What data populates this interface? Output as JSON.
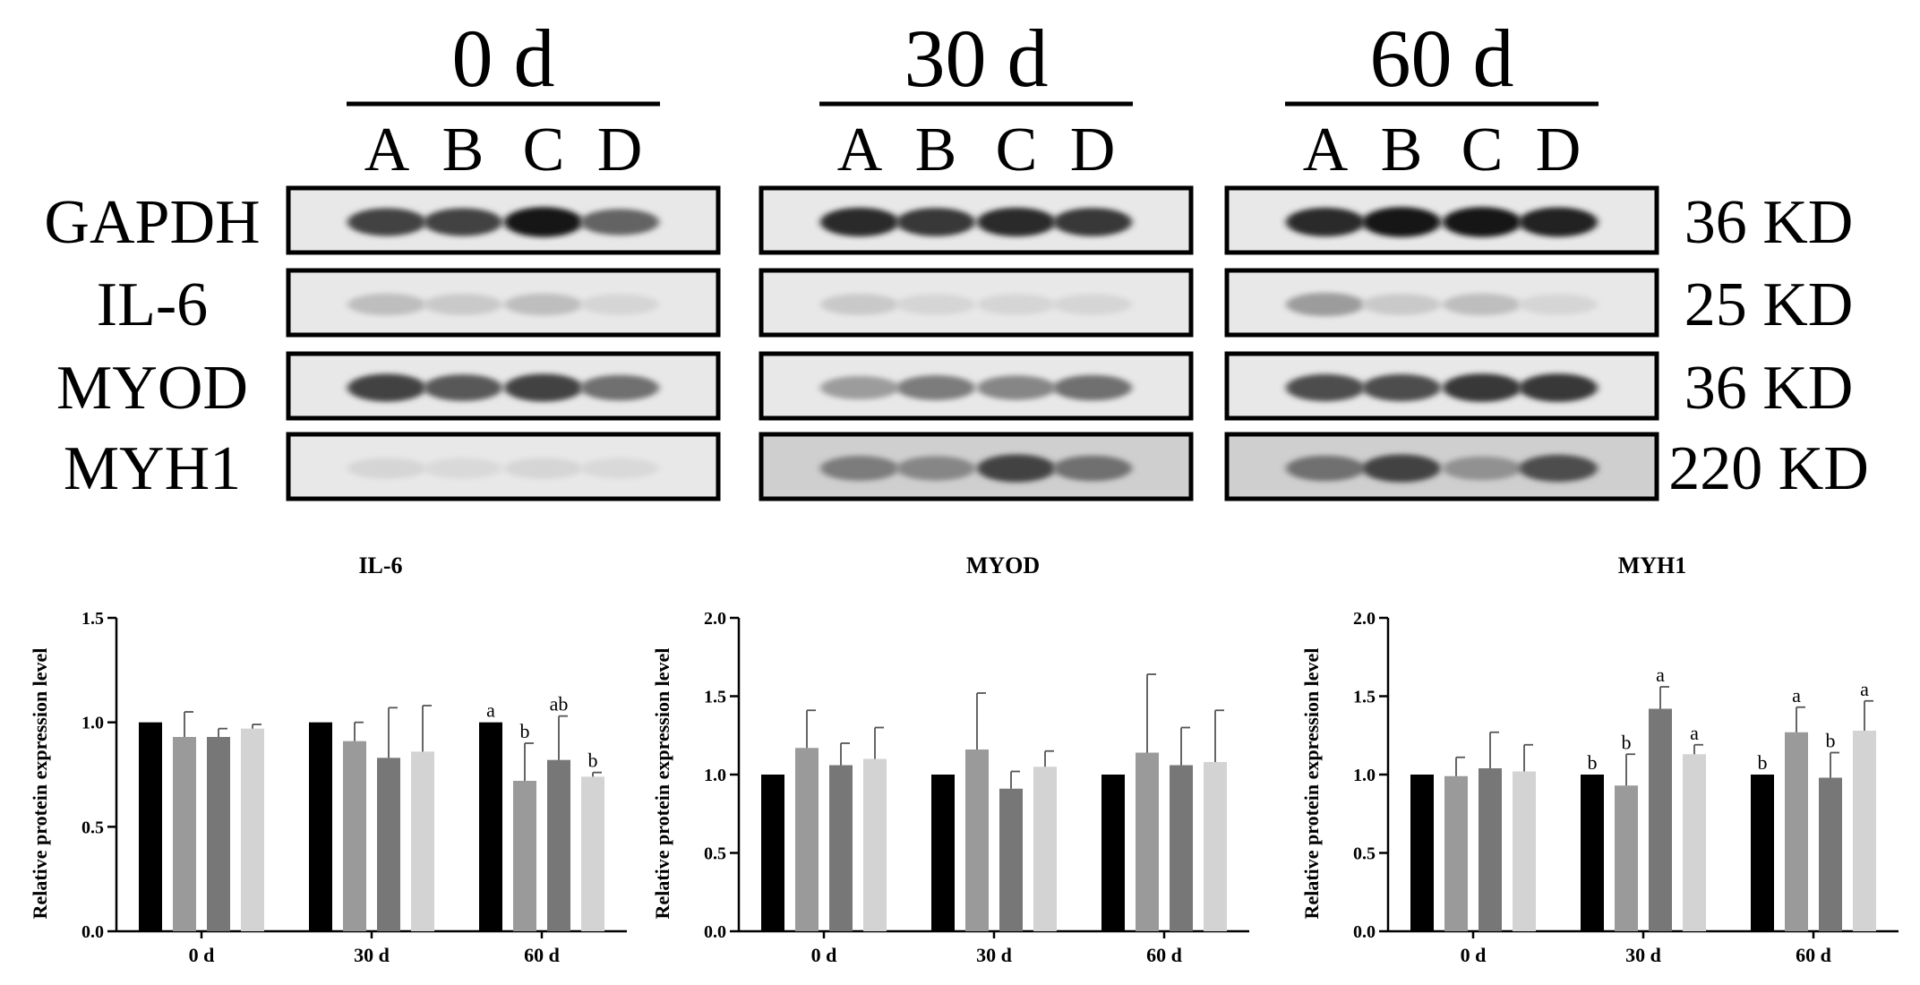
{
  "blot": {
    "timepoints": [
      {
        "label": "0 d",
        "lanes": [
          "A",
          "B",
          "C",
          "D"
        ]
      },
      {
        "label": "30 d",
        "lanes": [
          "A",
          "B",
          "C",
          "D"
        ]
      },
      {
        "label": "60 d",
        "lanes": [
          "A",
          "B",
          "C",
          "D"
        ]
      }
    ],
    "rows": [
      {
        "protein": "GAPDH",
        "size": "36 KD"
      },
      {
        "protein": "IL-6",
        "size": "25 KD"
      },
      {
        "protein": "MYOD",
        "size": "36 KD"
      },
      {
        "protein": "MYH1",
        "size": "220 KD"
      }
    ],
    "band_darkness": [
      [
        [
          0.75,
          0.75,
          0.95,
          0.6
        ],
        [
          0.85,
          0.8,
          0.85,
          0.8
        ],
        [
          0.85,
          0.95,
          0.95,
          0.9
        ]
      ],
      [
        [
          0.2,
          0.15,
          0.2,
          0.1
        ],
        [
          0.15,
          0.1,
          0.1,
          0.1
        ],
        [
          0.35,
          0.15,
          0.2,
          0.1
        ]
      ],
      [
        [
          0.75,
          0.65,
          0.75,
          0.55
        ],
        [
          0.35,
          0.5,
          0.45,
          0.55
        ],
        [
          0.7,
          0.7,
          0.8,
          0.8
        ]
      ],
      [
        [
          0.1,
          0.08,
          0.1,
          0.08
        ],
        [
          0.5,
          0.45,
          0.75,
          0.55
        ],
        [
          0.55,
          0.75,
          0.4,
          0.7
        ]
      ]
    ]
  },
  "chart_data": [
    {
      "type": "bar",
      "title": "IL-6",
      "ylabel": "Relative protein expression level",
      "ylim": [
        0,
        1.5
      ],
      "yticks": [
        "0.0",
        "0.5",
        "1.0",
        "1.5"
      ],
      "categories": [
        "0 d",
        "30 d",
        "60 d"
      ],
      "series": [
        {
          "color": "#000000",
          "values": [
            1.0,
            1.0,
            1.0
          ],
          "errors": [
            0,
            0,
            0
          ],
          "letters": [
            "",
            "",
            "a"
          ]
        },
        {
          "color": "#9a9a9a",
          "values": [
            0.93,
            0.91,
            0.72
          ],
          "errors": [
            0.12,
            0.09,
            0.18
          ],
          "letters": [
            "",
            "",
            "b"
          ]
        },
        {
          "color": "#777777",
          "values": [
            0.93,
            0.83,
            0.82
          ],
          "errors": [
            0.04,
            0.24,
            0.21
          ],
          "letters": [
            "",
            "",
            "ab"
          ]
        },
        {
          "color": "#d3d3d3",
          "values": [
            0.97,
            0.86,
            0.74
          ],
          "errors": [
            0.02,
            0.22,
            0.02
          ],
          "letters": [
            "",
            "",
            "b"
          ]
        }
      ]
    },
    {
      "type": "bar",
      "title": "MYOD",
      "ylabel": "Relative protein expression level",
      "ylim": [
        0,
        2.0
      ],
      "yticks": [
        "0.0",
        "0.5",
        "1.0",
        "1.5",
        "2.0"
      ],
      "categories": [
        "0 d",
        "30 d",
        "60 d"
      ],
      "series": [
        {
          "color": "#000000",
          "values": [
            1.0,
            1.0,
            1.0
          ],
          "errors": [
            0,
            0,
            0
          ],
          "letters": [
            "",
            "",
            ""
          ]
        },
        {
          "color": "#9a9a9a",
          "values": [
            1.17,
            1.16,
            1.14
          ],
          "errors": [
            0.24,
            0.36,
            0.5
          ],
          "letters": [
            "",
            "",
            ""
          ]
        },
        {
          "color": "#777777",
          "values": [
            1.06,
            0.91,
            1.06
          ],
          "errors": [
            0.14,
            0.11,
            0.24
          ],
          "letters": [
            "",
            "",
            ""
          ]
        },
        {
          "color": "#d3d3d3",
          "values": [
            1.1,
            1.05,
            1.08
          ],
          "errors": [
            0.2,
            0.1,
            0.33
          ],
          "letters": [
            "",
            "",
            ""
          ]
        }
      ]
    },
    {
      "type": "bar",
      "title": "MYH1",
      "ylabel": "Relative protein expression level",
      "ylim": [
        0,
        2.0
      ],
      "yticks": [
        "0.0",
        "0.5",
        "1.0",
        "1.5",
        "2.0"
      ],
      "categories": [
        "0 d",
        "30 d",
        "60 d"
      ],
      "series": [
        {
          "color": "#000000",
          "values": [
            1.0,
            1.0,
            1.0
          ],
          "errors": [
            0,
            0,
            0
          ],
          "letters": [
            "",
            "b",
            "b"
          ]
        },
        {
          "color": "#9a9a9a",
          "values": [
            0.99,
            0.93,
            1.27
          ],
          "errors": [
            0.12,
            0.2,
            0.16
          ],
          "letters": [
            "",
            "b",
            "a"
          ]
        },
        {
          "color": "#777777",
          "values": [
            1.04,
            1.42,
            0.98
          ],
          "errors": [
            0.23,
            0.14,
            0.16
          ],
          "letters": [
            "",
            "a",
            "b"
          ]
        },
        {
          "color": "#d3d3d3",
          "values": [
            1.02,
            1.13,
            1.28
          ],
          "errors": [
            0.17,
            0.06,
            0.19
          ],
          "letters": [
            "",
            "a",
            "a"
          ]
        }
      ]
    }
  ]
}
